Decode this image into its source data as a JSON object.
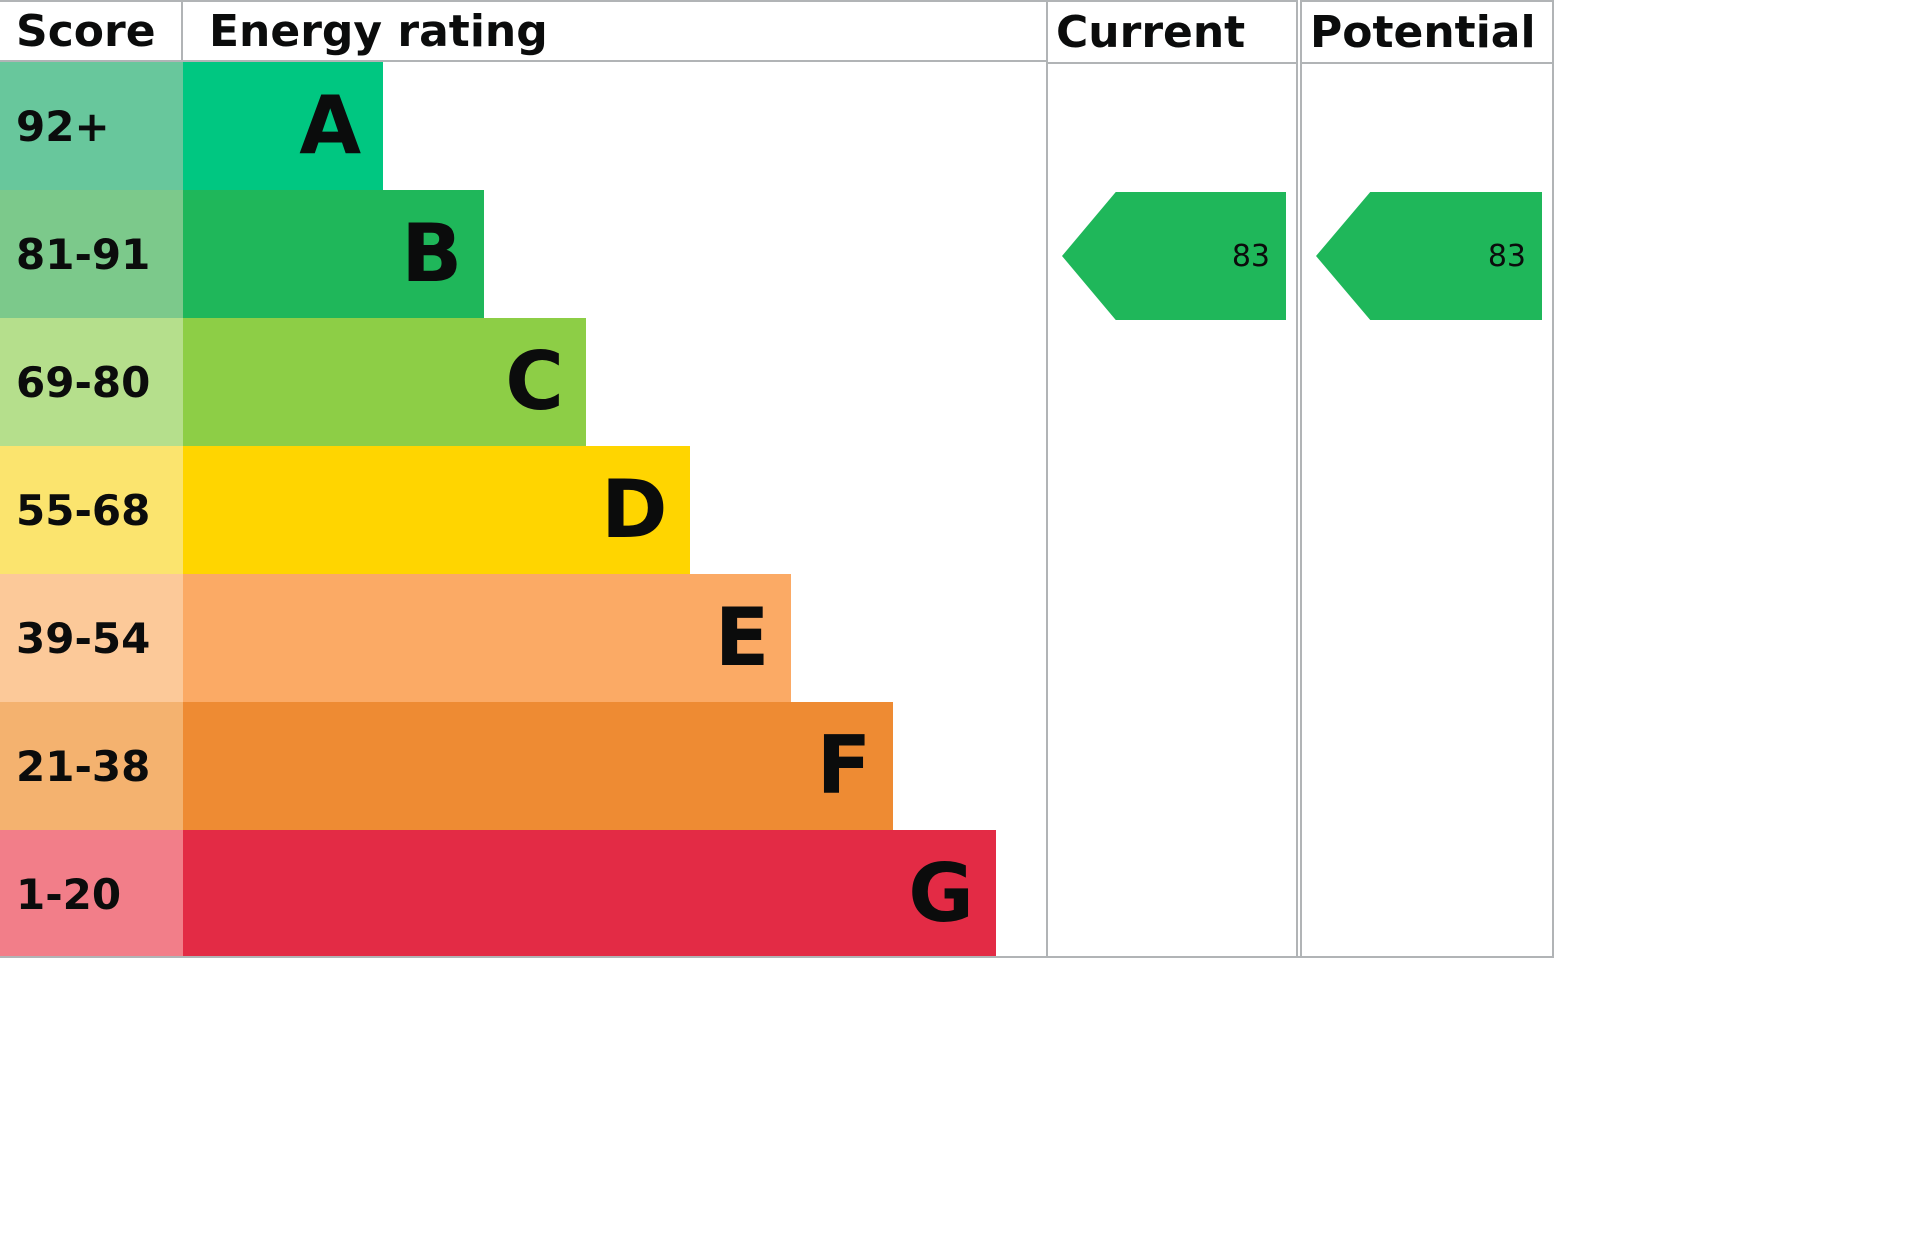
{
  "header": {
    "score": "Score",
    "energy_rating": "Energy rating",
    "current": "Current",
    "potential": "Potential"
  },
  "colors": {
    "border": "#b1b4b6",
    "text": "#0b0c0c"
  },
  "chart_data": {
    "type": "bar",
    "title": "Energy rating (EPC)",
    "orientation": "horizontal",
    "bands": [
      {
        "score": "92+",
        "letter": "A",
        "bar_color": "#00c781",
        "score_bg": "#68c79c",
        "bar_width": "23.2%"
      },
      {
        "score": "81-91",
        "letter": "B",
        "bar_color": "#1fb75a",
        "score_bg": "#7cc98b",
        "bar_width": "34.9%"
      },
      {
        "score": "69-80",
        "letter": "C",
        "bar_color": "#8dce46",
        "score_bg": "#b5df8c",
        "bar_width": "46.7%"
      },
      {
        "score": "55-68",
        "letter": "D",
        "bar_color": "#ffd500",
        "score_bg": "#fbe46e",
        "bar_width": "58.7%"
      },
      {
        "score": "39-54",
        "letter": "E",
        "bar_color": "#fbaa65",
        "score_bg": "#fcc999",
        "bar_width": "70.5%"
      },
      {
        "score": "21-38",
        "letter": "F",
        "bar_color": "#ee8b33",
        "score_bg": "#f4b26f",
        "bar_width": "82.3%"
      },
      {
        "score": "1-20",
        "letter": "G",
        "bar_color": "#e32b45",
        "score_bg": "#f27e89",
        "bar_width": "94.2%"
      }
    ],
    "current": {
      "value": "83",
      "band": "B",
      "band_index": 1,
      "color": "#1fb75a"
    },
    "potential": {
      "value": "83",
      "band": "B",
      "band_index": 1,
      "color": "#1fb75a"
    }
  }
}
